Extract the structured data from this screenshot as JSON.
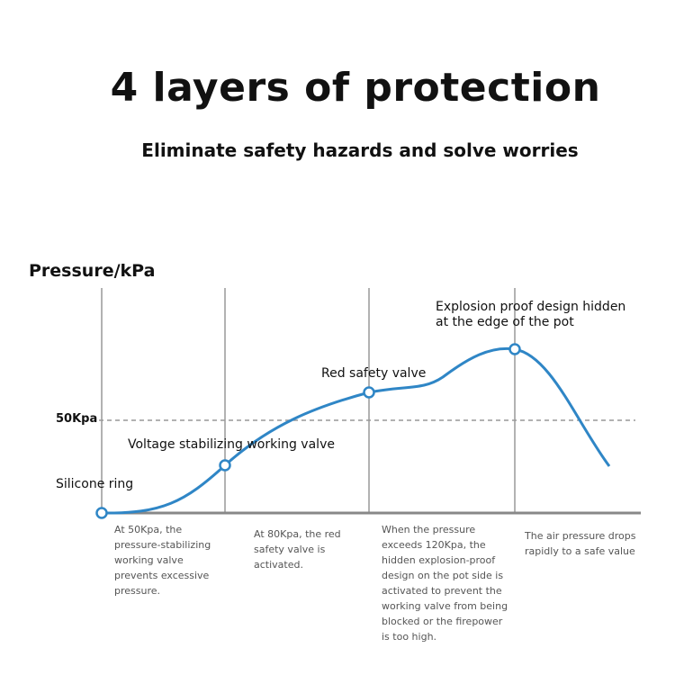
{
  "title": "4 layers of protection",
  "subtitle": "Eliminate safety hazards and solve worries",
  "diagram": {
    "y_axis_label": "Pressure/kPa",
    "reference_line_label": "50Kpa",
    "curve_color": "#2f86c6",
    "stages": [
      {
        "label": "Silicone ring",
        "description": ""
      },
      {
        "label": "Voltage stabilizing working valve",
        "description": "At 50Kpa, the pressure-stabilizing working valve prevents excessive pressure."
      },
      {
        "label": "Red safety valve",
        "description": "At 80Kpa, the red safety valve is activated."
      },
      {
        "label": "Explosion proof design hidden at the edge of the pot",
        "description": "When the pressure exceeds 120Kpa, the hidden explosion-proof design on the pot side is activated to prevent the working valve from being blocked or the firepower is too high."
      },
      {
        "label": "",
        "description": "The air pressure drops rapidly to a safe value"
      }
    ]
  }
}
